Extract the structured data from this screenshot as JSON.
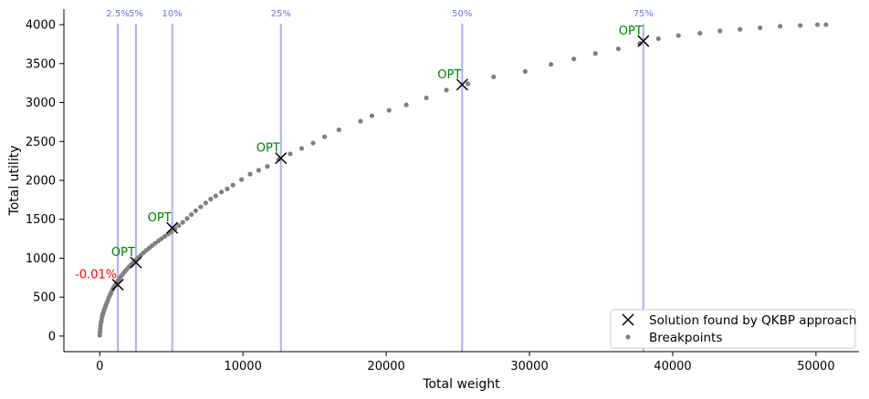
{
  "chart_data": {
    "type": "scatter",
    "xlabel": "Total weight",
    "ylabel": "Total utility",
    "xlim": [
      -2500,
      53000
    ],
    "ylim": [
      -200,
      4200
    ],
    "x_ticks": [
      0,
      10000,
      20000,
      30000,
      40000,
      50000
    ],
    "y_ticks": [
      0,
      500,
      1000,
      1500,
      2000,
      2500,
      3000,
      3500,
      4000
    ],
    "capacity_lines": [
      {
        "label": "2.5%",
        "x": 1265
      },
      {
        "label": "5%",
        "x": 2530
      },
      {
        "label": "10%",
        "x": 5060
      },
      {
        "label": "25%",
        "x": 12650
      },
      {
        "label": "50%",
        "x": 25300
      },
      {
        "label": "75%",
        "x": 37950
      }
    ],
    "line_color": "#aab0ff",
    "series": [
      {
        "name": "Solution found by QKBP approach",
        "marker": "x",
        "color": "#000000",
        "points": [
          {
            "x": 1265,
            "y": 660,
            "note": "-0.01%"
          },
          {
            "x": 2530,
            "y": 945,
            "note": "OPT"
          },
          {
            "x": 5060,
            "y": 1390,
            "note": "OPT"
          },
          {
            "x": 12650,
            "y": 2285,
            "note": "OPT"
          },
          {
            "x": 25300,
            "y": 3230,
            "note": "OPT"
          },
          {
            "x": 37950,
            "y": 3790,
            "note": "OPT"
          }
        ]
      },
      {
        "name": "Breakpoints",
        "marker": "dot",
        "color": "#808080",
        "x": [
          0,
          20,
          40,
          60,
          90,
          120,
          160,
          200,
          250,
          300,
          360,
          420,
          480,
          550,
          620,
          700,
          780,
          870,
          960,
          1060,
          1160,
          1270,
          1380,
          1500,
          1630,
          1760,
          1900,
          2050,
          2200,
          2360,
          2530,
          2700,
          2880,
          3060,
          3250,
          3450,
          3650,
          3860,
          4080,
          4300,
          4530,
          4770,
          5010,
          5260,
          5520,
          5800,
          6100,
          6400,
          6700,
          7050,
          7400,
          7750,
          8100,
          8500,
          8900,
          9300,
          9900,
          10500,
          11100,
          11700,
          12500,
          13300,
          14100,
          14900,
          15700,
          16700,
          18200,
          19000,
          20200,
          21400,
          22800,
          24200,
          25700,
          27500,
          29700,
          31500,
          33100,
          34600,
          36200,
          37700,
          39000,
          40400,
          41900,
          43300,
          44700,
          46100,
          47500,
          48900,
          50100,
          50700
        ],
        "y": [
          10,
          50,
          90,
          130,
          170,
          200,
          240,
          270,
          300,
          330,
          360,
          390,
          420,
          450,
          490,
          520,
          550,
          590,
          620,
          650,
          680,
          710,
          740,
          770,
          800,
          830,
          860,
          890,
          920,
          950,
          980,
          1010,
          1040,
          1070,
          1100,
          1130,
          1160,
          1190,
          1220,
          1250,
          1280,
          1310,
          1340,
          1380,
          1420,
          1460,
          1510,
          1560,
          1610,
          1660,
          1710,
          1760,
          1800,
          1850,
          1890,
          1940,
          2010,
          2080,
          2130,
          2180,
          2270,
          2340,
          2410,
          2480,
          2560,
          2650,
          2760,
          2830,
          2900,
          2970,
          3060,
          3160,
          3240,
          3330,
          3400,
          3490,
          3560,
          3630,
          3690,
          3760,
          3820,
          3860,
          3890,
          3920,
          3940,
          3960,
          3980,
          3990,
          4000,
          4000
        ]
      }
    ],
    "legend": {
      "placement": "lower-right"
    }
  }
}
